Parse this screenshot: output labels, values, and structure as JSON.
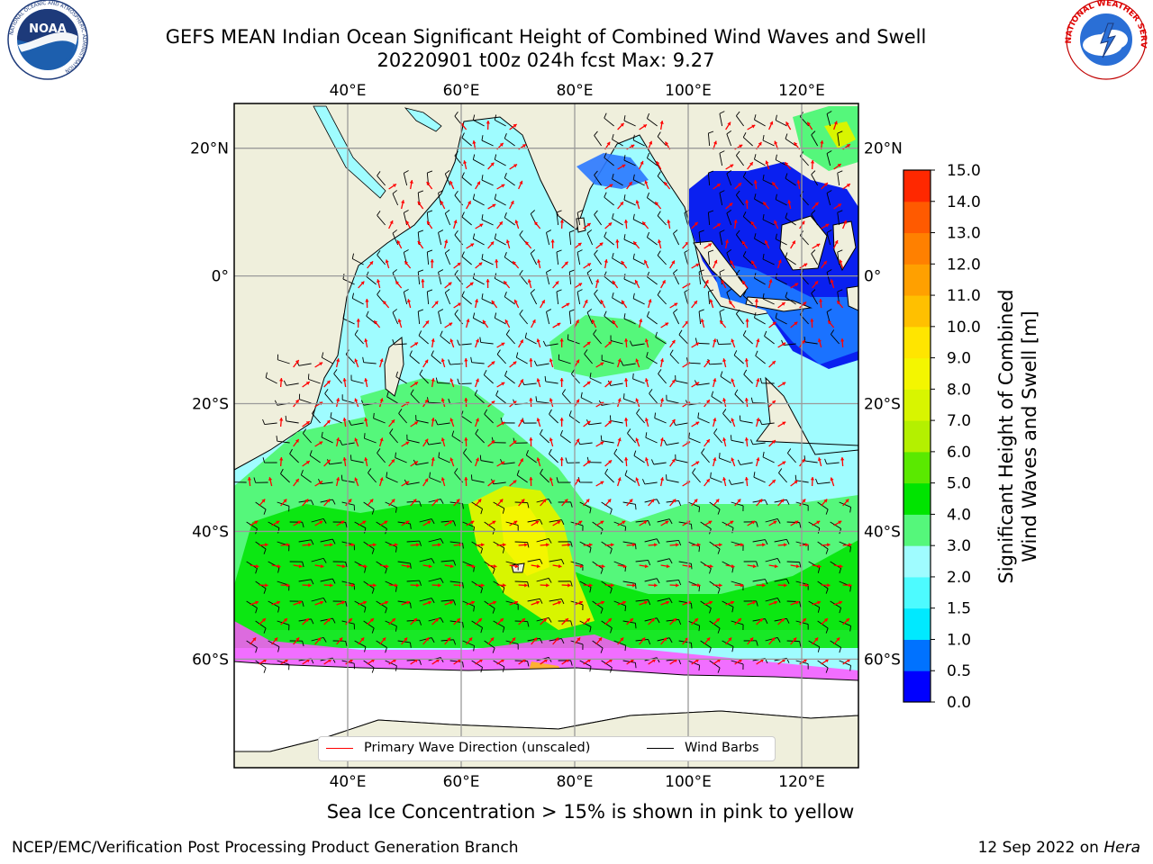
{
  "title": {
    "line1": "GEFS MEAN Indian Ocean Significant Height of Combined Wind Waves and Swell",
    "line2": "20220901 t00z 024h fcst   Max: 9.27"
  },
  "map": {
    "lon_range": [
      20,
      130
    ],
    "lat_range": [
      -77,
      27
    ],
    "lon_ticks": [
      40,
      60,
      80,
      100,
      120
    ],
    "lon_tick_labels": [
      "40°E",
      "60°E",
      "80°E",
      "100°E",
      "120°E"
    ],
    "lat_ticks": [
      20,
      0,
      -20,
      -40,
      -60
    ],
    "lat_tick_labels": [
      "20°N",
      "0°",
      "20°S",
      "40°S",
      "60°S"
    ],
    "land_color": "#efefdc",
    "ocean_color": "#9ffcff",
    "grid": true
  },
  "colorbar": {
    "label_line1": "Significant Height of Combined",
    "label_line2": "Wind Waves and Swell [m]",
    "levels": [
      0.0,
      0.5,
      1.0,
      1.5,
      2.0,
      3.0,
      4.0,
      5.0,
      6.0,
      7.0,
      8.0,
      9.0,
      10.0,
      11.0,
      12.0,
      13.0,
      14.0,
      15.0
    ],
    "tick_labels": [
      "0.0",
      "0.5",
      "1.0",
      "1.5",
      "2.0",
      "3.0",
      "4.0",
      "5.0",
      "6.0",
      "7.0",
      "8.0",
      "9.0",
      "10.0",
      "11.0",
      "12.0",
      "13.0",
      "14.0",
      "15.0"
    ],
    "colors": [
      "#0000ff",
      "#0072ff",
      "#00e9ff",
      "#4dfbff",
      "#9ffcff",
      "#55f77b",
      "#00e400",
      "#5ae900",
      "#b4f000",
      "#d8f500",
      "#f4f600",
      "#ffe500",
      "#ffc000",
      "#ffa000",
      "#ff8000",
      "#ff5a00",
      "#ff2800"
    ]
  },
  "legend": {
    "wave_label": "Primary Wave Direction (unscaled)",
    "wave_color": "#ff0000",
    "wind_label": "Wind Barbs",
    "wind_color": "#000000"
  },
  "caption": "Sea Ice Concentration > 15% is shown in pink to yellow",
  "footer": {
    "left": "NCEP/EMC/Verification Post Processing Product Generation Branch",
    "right_prefix": "12 Sep 2022 on ",
    "right_machine": "Hera"
  },
  "logos": {
    "noaa_text": "NOAA",
    "noaa_ring_text": "NATIONAL OCEANIC AND ATMOSPHERIC ADMINISTRATION",
    "nws_ring_text": "NATIONAL WEATHER SERVICE"
  }
}
